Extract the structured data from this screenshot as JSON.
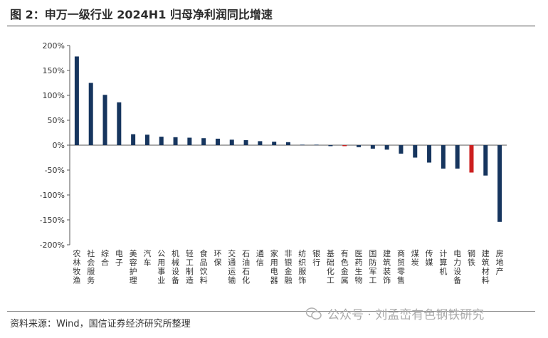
{
  "header": {
    "title": "图 2：申万一级行业 2024H1 归母净利润同比增速"
  },
  "footer": {
    "source": "资料来源：Wind，国信证券经济研究所整理"
  },
  "watermark": {
    "text": "公众号 · 刘孟峦有色钢铁研究"
  },
  "chart_data": {
    "type": "bar",
    "title": "申万一级行业 2024H1 归母净利润同比增速",
    "xlabel": "",
    "ylabel": "",
    "ylim": [
      -200,
      200
    ],
    "yticks": [
      200,
      150,
      100,
      50,
      0,
      -50,
      -100,
      -150,
      -200
    ],
    "ytick_labels": [
      "200%",
      "150%",
      "100%",
      "50%",
      "0%",
      "-50%",
      "-100%",
      "-150%",
      "-200%"
    ],
    "categories": [
      "农林牧渔",
      "社会服务",
      "综合",
      "电子",
      "美容护理",
      "汽车",
      "公用事业",
      "机械设备",
      "轻工制造",
      "食品饮料",
      "环保",
      "交通运输",
      "石油石化",
      "通信",
      "家用电器",
      "非银金融",
      "纺织服饰",
      "银行",
      "基础化工",
      "有色金属",
      "医药生物",
      "国防军工",
      "建筑装饰",
      "商贸零售",
      "煤炭",
      "传媒",
      "计算机",
      "电力设备",
      "钢铁",
      "建筑材料",
      "房地产"
    ],
    "values": [
      178,
      125,
      101,
      86,
      22,
      21,
      17,
      16,
      15,
      14,
      13,
      11,
      10,
      8,
      7,
      6,
      1,
      1,
      -2,
      -2,
      -4,
      -7,
      -9,
      -17,
      -25,
      -35,
      -47,
      -47,
      -55,
      -61,
      -154
    ],
    "bar_color": "#16355e",
    "highlight_color": "#cc1f1f",
    "highlight_categories": [
      "有色金属",
      "钢铁"
    ]
  }
}
